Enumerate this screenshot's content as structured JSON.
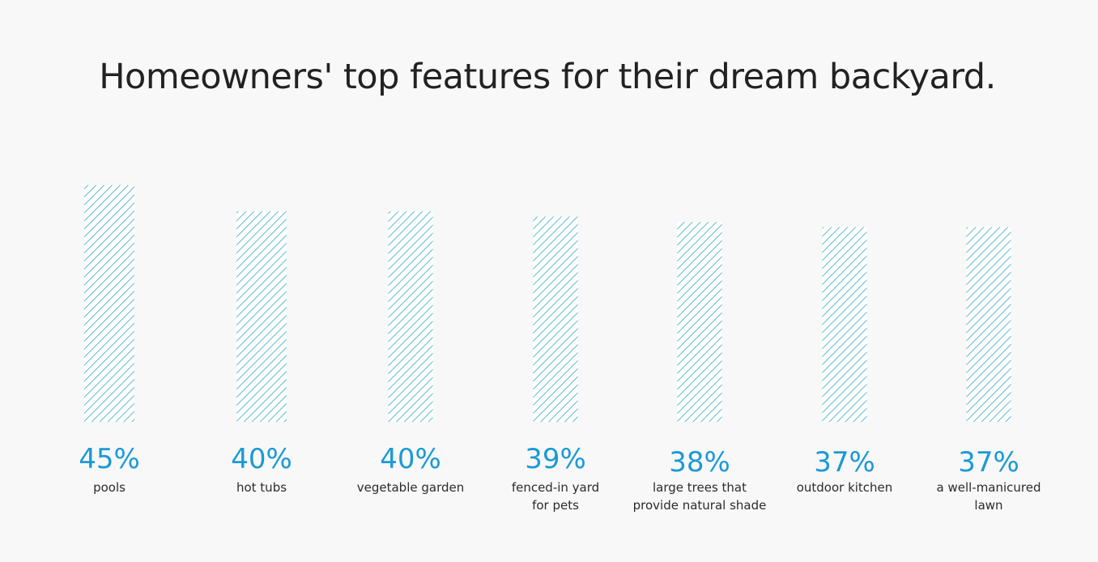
{
  "chart_data": {
    "type": "bar",
    "title": "Homeowners' top features for their dream backyard.",
    "categories": [
      [
        "pools"
      ],
      [
        "hot tubs"
      ],
      [
        "vegetable garden"
      ],
      [
        "fenced-in yard",
        "for pets"
      ],
      [
        "large trees that",
        "provide natural shade"
      ],
      [
        "outdoor kitchen"
      ],
      [
        "a well-manicured",
        "lawn"
      ]
    ],
    "values": [
      45,
      40,
      40,
      39,
      38,
      37,
      37
    ],
    "value_labels": [
      "45%",
      "40%",
      "40%",
      "39%",
      "38%",
      "37%",
      "37%"
    ],
    "bar_fill": "hatched-diagonal",
    "bar_color": "#5bbcd0",
    "value_label_color": "#1a9ad6",
    "grid": false,
    "axes_visible": false
  }
}
